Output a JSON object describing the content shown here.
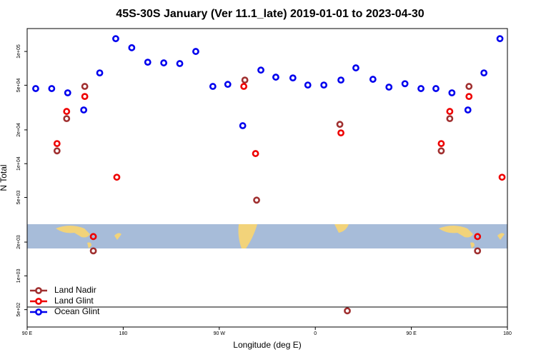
{
  "chart_data": {
    "type": "scatter",
    "title": "45S-30S January (Ver 11.1_late)   2019-01-01 to 2023-04-30",
    "x_label": "Longitude (deg E)",
    "y_label": "N Total",
    "xlim": [
      90,
      540
    ],
    "xticks": [
      {
        "value": 90,
        "label": "90 E"
      },
      {
        "value": 180,
        "label": "180"
      },
      {
        "value": 270,
        "label": "90 W"
      },
      {
        "value": 360,
        "label": "0"
      },
      {
        "value": 450,
        "label": "90 E"
      },
      {
        "value": 540,
        "label": "180"
      }
    ],
    "ylim": [
      350,
      160000
    ],
    "log_y": true,
    "yticks": [
      {
        "value": 500,
        "label": "5e+02"
      },
      {
        "value": 1000,
        "label": "1e+03"
      },
      {
        "value": 2000,
        "label": "2e+03"
      },
      {
        "value": 5000,
        "label": "5e+03"
      },
      {
        "value": 10000,
        "label": "1e+04"
      },
      {
        "value": 20000,
        "label": "2e+04"
      },
      {
        "value": 50000,
        "label": "5e+04"
      },
      {
        "value": 100000,
        "label": "1e+05"
      }
    ],
    "legend": "bottom-left",
    "series": [
      {
        "name": "Land Nadir",
        "color": "#a03030",
        "x": [
          118,
          127,
          144,
          152,
          294,
          305,
          383,
          390,
          478,
          486,
          504,
          512
        ],
        "values": [
          13000,
          25200,
          48800,
          1670,
          55600,
          4730,
          22400,
          488,
          13000,
          25200,
          48800,
          1670
        ]
      },
      {
        "name": "Land Glint",
        "color": "#ee0000",
        "x": [
          118,
          127,
          144,
          152,
          174,
          293,
          304,
          384,
          478,
          486,
          504,
          512,
          535
        ],
        "values": [
          15100,
          29200,
          39700,
          2240,
          7570,
          48800,
          12300,
          18800,
          15100,
          29200,
          39700,
          2240,
          7570
        ]
      },
      {
        "name": "Ocean Glint",
        "color": "#0000ee",
        "x": [
          98,
          113,
          128,
          143,
          158,
          173,
          188,
          203,
          218,
          233,
          248,
          264,
          278,
          292,
          309,
          323,
          339,
          353,
          368,
          384,
          398,
          414,
          429,
          444,
          459,
          473,
          488,
          503,
          518,
          533
        ],
        "values": [
          46700,
          46700,
          42800,
          30100,
          64400,
          130000,
          108000,
          80200,
          79100,
          78000,
          100000,
          48800,
          50900,
          21800,
          68200,
          59000,
          58100,
          50200,
          50200,
          55600,
          71400,
          56500,
          48100,
          51600,
          46700,
          46700,
          42800,
          30100,
          64400,
          130000
        ]
      }
    ]
  }
}
